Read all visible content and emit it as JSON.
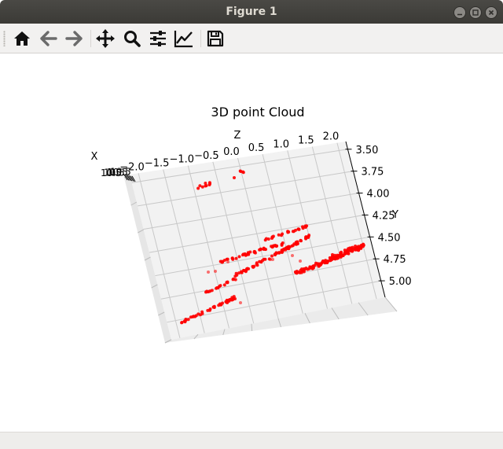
{
  "window": {
    "title": "Figure 1",
    "controls": [
      "minimize-icon",
      "maximize-icon",
      "close-icon"
    ]
  },
  "toolbar": {
    "buttons": [
      {
        "name": "home-button",
        "icon": "home-icon"
      },
      {
        "name": "back-button",
        "icon": "arrow-left-icon"
      },
      {
        "name": "forward-button",
        "icon": "arrow-right-icon"
      },
      {
        "name": "pan-button",
        "icon": "move-icon"
      },
      {
        "name": "zoom-button",
        "icon": "magnifier-icon"
      },
      {
        "name": "subplots-button",
        "icon": "sliders-icon"
      },
      {
        "name": "edit-axis-button",
        "icon": "line-chart-icon"
      },
      {
        "name": "save-button",
        "icon": "floppy-disk-icon"
      }
    ]
  },
  "status": {
    "text": ""
  },
  "chart_data": {
    "type": "scatter",
    "title": "3D point Cloud",
    "xlabel": "X",
    "ylabel": "Y",
    "zlabel": "Z",
    "z_ticks": [
      "−2.0",
      "−1.5",
      "−1.0",
      "−0.5",
      "0.0",
      "0.5",
      "1.0",
      "1.5",
      "2.0"
    ],
    "y_ticks": [
      "3.50",
      "3.75",
      "4.00",
      "4.25",
      "4.50",
      "4.75",
      "5.00"
    ],
    "x_ticks_overlapping": "10.5",
    "marker_color": "#ff0000",
    "grid": true
  }
}
